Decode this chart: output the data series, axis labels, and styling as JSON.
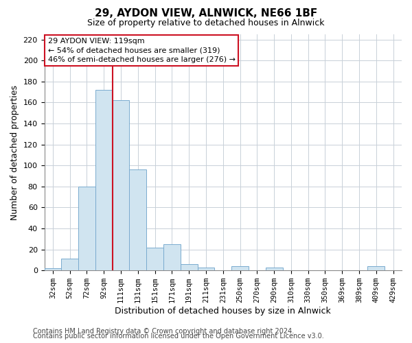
{
  "title": "29, AYDON VIEW, ALNWICK, NE66 1BF",
  "subtitle": "Size of property relative to detached houses in Alnwick",
  "xlabel": "Distribution of detached houses by size in Alnwick",
  "ylabel": "Number of detached properties",
  "bar_labels": [
    "32sqm",
    "52sqm",
    "72sqm",
    "92sqm",
    "111sqm",
    "131sqm",
    "151sqm",
    "171sqm",
    "191sqm",
    "211sqm",
    "231sqm",
    "250sqm",
    "270sqm",
    "290sqm",
    "310sqm",
    "330sqm",
    "350sqm",
    "369sqm",
    "389sqm",
    "409sqm",
    "429sqm"
  ],
  "bar_values": [
    2,
    11,
    80,
    172,
    162,
    96,
    22,
    25,
    6,
    3,
    0,
    4,
    0,
    3,
    0,
    0,
    0,
    0,
    0,
    4,
    0
  ],
  "bar_color": "#d0e4f0",
  "bar_edge_color": "#7aabcf",
  "red_line_index": 4,
  "red_line_color": "#cc1122",
  "ylim": [
    0,
    225
  ],
  "yticks": [
    0,
    20,
    40,
    60,
    80,
    100,
    120,
    140,
    160,
    180,
    200,
    220
  ],
  "annotation_title": "29 AYDON VIEW: 119sqm",
  "annotation_line1": "← 54% of detached houses are smaller (319)",
  "annotation_line2": "46% of semi-detached houses are larger (276) →",
  "footer_line1": "Contains HM Land Registry data © Crown copyright and database right 2024.",
  "footer_line2": "Contains public sector information licensed under the Open Government Licence v3.0.",
  "background_color": "#ffffff",
  "grid_color": "#c8d0d8",
  "title_fontsize": 11,
  "subtitle_fontsize": 9,
  "axis_label_fontsize": 9,
  "tick_fontsize": 8,
  "annotation_fontsize": 8,
  "footer_fontsize": 7
}
